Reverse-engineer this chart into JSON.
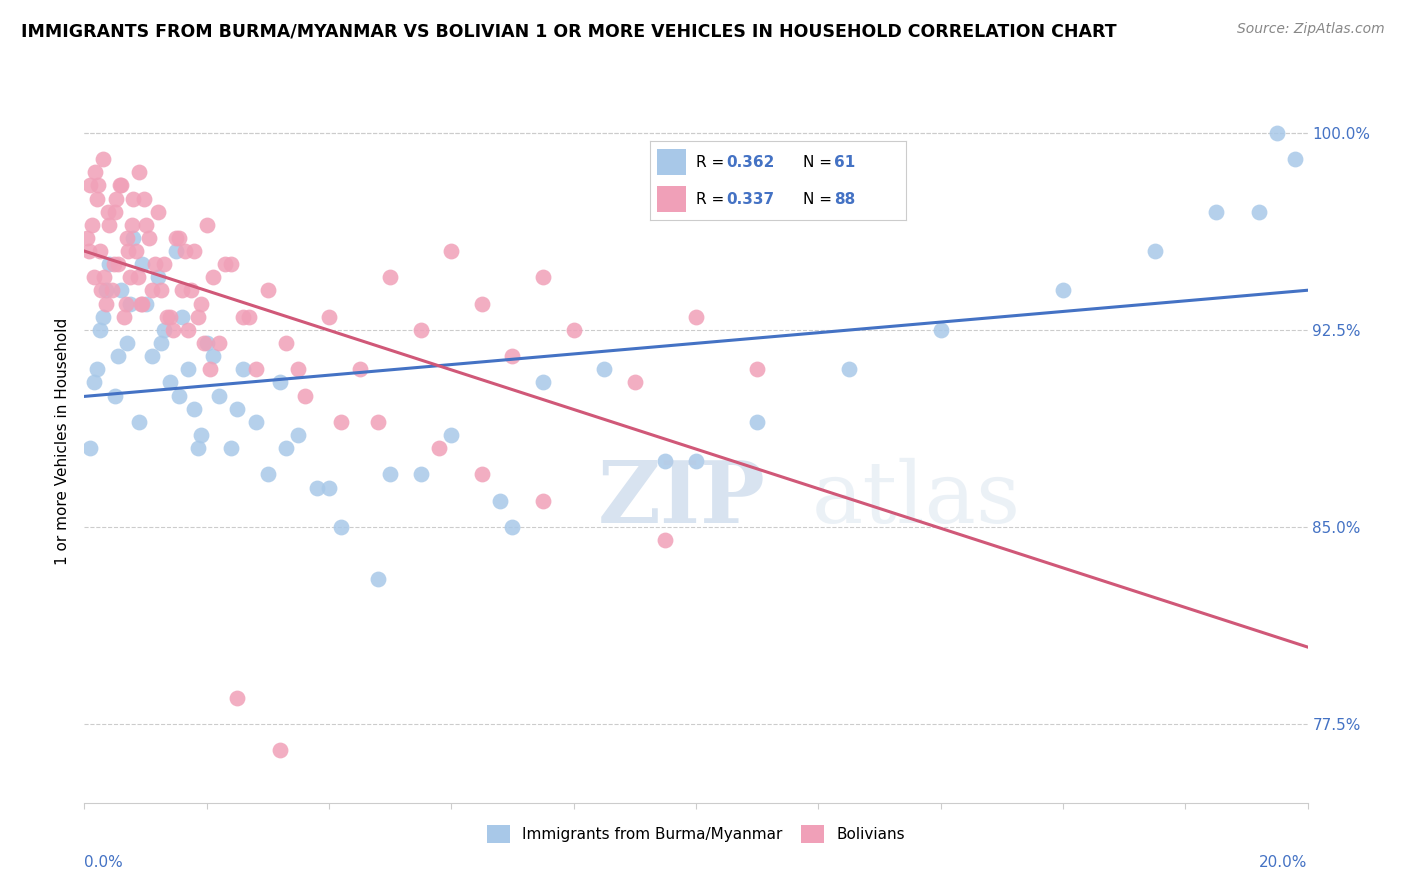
{
  "title": "IMMIGRANTS FROM BURMA/MYANMAR VS BOLIVIAN 1 OR MORE VEHICLES IN HOUSEHOLD CORRELATION CHART",
  "source": "Source: ZipAtlas.com",
  "xmin": 0.0,
  "xmax": 20.0,
  "ymin": 74.5,
  "ymax": 102.0,
  "blue_R": 0.362,
  "blue_N": 61,
  "pink_R": 0.337,
  "pink_N": 88,
  "blue_color": "#a8c8e8",
  "pink_color": "#f0a0b8",
  "blue_line_color": "#4472c4",
  "pink_line_color": "#d05878",
  "legend_label_blue": "Immigrants from Burma/Myanmar",
  "legend_label_pink": "Bolivians",
  "watermark_zip": "ZIP",
  "watermark_atlas": "atlas",
  "right_yticks": [
    77.5,
    85.0,
    92.5,
    100.0
  ],
  "right_ylabels": [
    "77.5%",
    "85.0%",
    "92.5%",
    "100.0%"
  ],
  "blue_scatter_x": [
    0.1,
    0.2,
    0.3,
    0.4,
    0.5,
    0.6,
    0.7,
    0.8,
    0.9,
    1.0,
    1.1,
    1.2,
    1.3,
    1.4,
    1.5,
    1.6,
    1.7,
    1.8,
    1.9,
    2.0,
    2.2,
    2.4,
    2.6,
    2.8,
    3.0,
    3.2,
    3.5,
    3.8,
    4.2,
    4.8,
    5.5,
    6.0,
    6.8,
    7.5,
    8.5,
    9.5,
    11.0,
    12.5,
    14.0,
    16.0,
    17.5,
    18.5,
    19.5,
    0.15,
    0.25,
    0.35,
    0.55,
    0.75,
    0.95,
    1.25,
    1.55,
    1.85,
    2.1,
    2.5,
    3.3,
    4.0,
    5.0,
    7.0,
    10.0,
    19.8,
    19.2
  ],
  "blue_scatter_y": [
    88.0,
    91.0,
    93.0,
    95.0,
    90.0,
    94.0,
    92.0,
    96.0,
    89.0,
    93.5,
    91.5,
    94.5,
    92.5,
    90.5,
    95.5,
    93.0,
    91.0,
    89.5,
    88.5,
    92.0,
    90.0,
    88.0,
    91.0,
    89.0,
    87.0,
    90.5,
    88.5,
    86.5,
    85.0,
    83.0,
    87.0,
    88.5,
    86.0,
    90.5,
    91.0,
    87.5,
    89.0,
    91.0,
    92.5,
    94.0,
    95.5,
    97.0,
    100.0,
    90.5,
    92.5,
    94.0,
    91.5,
    93.5,
    95.0,
    92.0,
    90.0,
    88.0,
    91.5,
    89.5,
    88.0,
    86.5,
    87.0,
    85.0,
    87.5,
    99.0,
    97.0
  ],
  "pink_scatter_x": [
    0.05,
    0.1,
    0.15,
    0.2,
    0.25,
    0.3,
    0.35,
    0.4,
    0.45,
    0.5,
    0.55,
    0.6,
    0.65,
    0.7,
    0.75,
    0.8,
    0.85,
    0.9,
    0.95,
    1.0,
    1.1,
    1.2,
    1.3,
    1.4,
    1.5,
    1.6,
    1.7,
    1.8,
    1.9,
    2.0,
    2.1,
    2.2,
    2.4,
    2.6,
    2.8,
    3.0,
    3.3,
    3.6,
    4.0,
    4.5,
    5.0,
    5.5,
    6.0,
    6.5,
    7.0,
    7.5,
    8.0,
    9.0,
    10.0,
    11.0,
    0.08,
    0.18,
    0.28,
    0.38,
    0.48,
    0.58,
    0.68,
    0.78,
    0.88,
    0.98,
    1.15,
    1.35,
    1.55,
    1.75,
    1.95,
    2.3,
    2.7,
    3.5,
    4.8,
    6.5,
    0.12,
    0.22,
    0.32,
    0.52,
    0.72,
    0.92,
    1.05,
    1.25,
    1.45,
    1.65,
    1.85,
    2.05,
    2.5,
    3.2,
    4.2,
    5.8,
    7.5,
    9.5
  ],
  "pink_scatter_y": [
    96.0,
    98.0,
    94.5,
    97.5,
    95.5,
    99.0,
    93.5,
    96.5,
    94.0,
    97.0,
    95.0,
    98.0,
    93.0,
    96.0,
    94.5,
    97.5,
    95.5,
    98.5,
    93.5,
    96.5,
    94.0,
    97.0,
    95.0,
    93.0,
    96.0,
    94.0,
    92.5,
    95.5,
    93.5,
    96.5,
    94.5,
    92.0,
    95.0,
    93.0,
    91.0,
    94.0,
    92.0,
    90.0,
    93.0,
    91.0,
    94.5,
    92.5,
    95.5,
    93.5,
    91.5,
    94.5,
    92.5,
    90.5,
    93.0,
    91.0,
    95.5,
    98.5,
    94.0,
    97.0,
    95.0,
    98.0,
    93.5,
    96.5,
    94.5,
    97.5,
    95.0,
    93.0,
    96.0,
    94.0,
    92.0,
    95.0,
    93.0,
    91.0,
    89.0,
    87.0,
    96.5,
    98.0,
    94.5,
    97.5,
    95.5,
    93.5,
    96.0,
    94.0,
    92.5,
    95.5,
    93.0,
    91.0,
    78.5,
    76.5,
    89.0,
    88.0,
    86.0,
    84.5
  ]
}
